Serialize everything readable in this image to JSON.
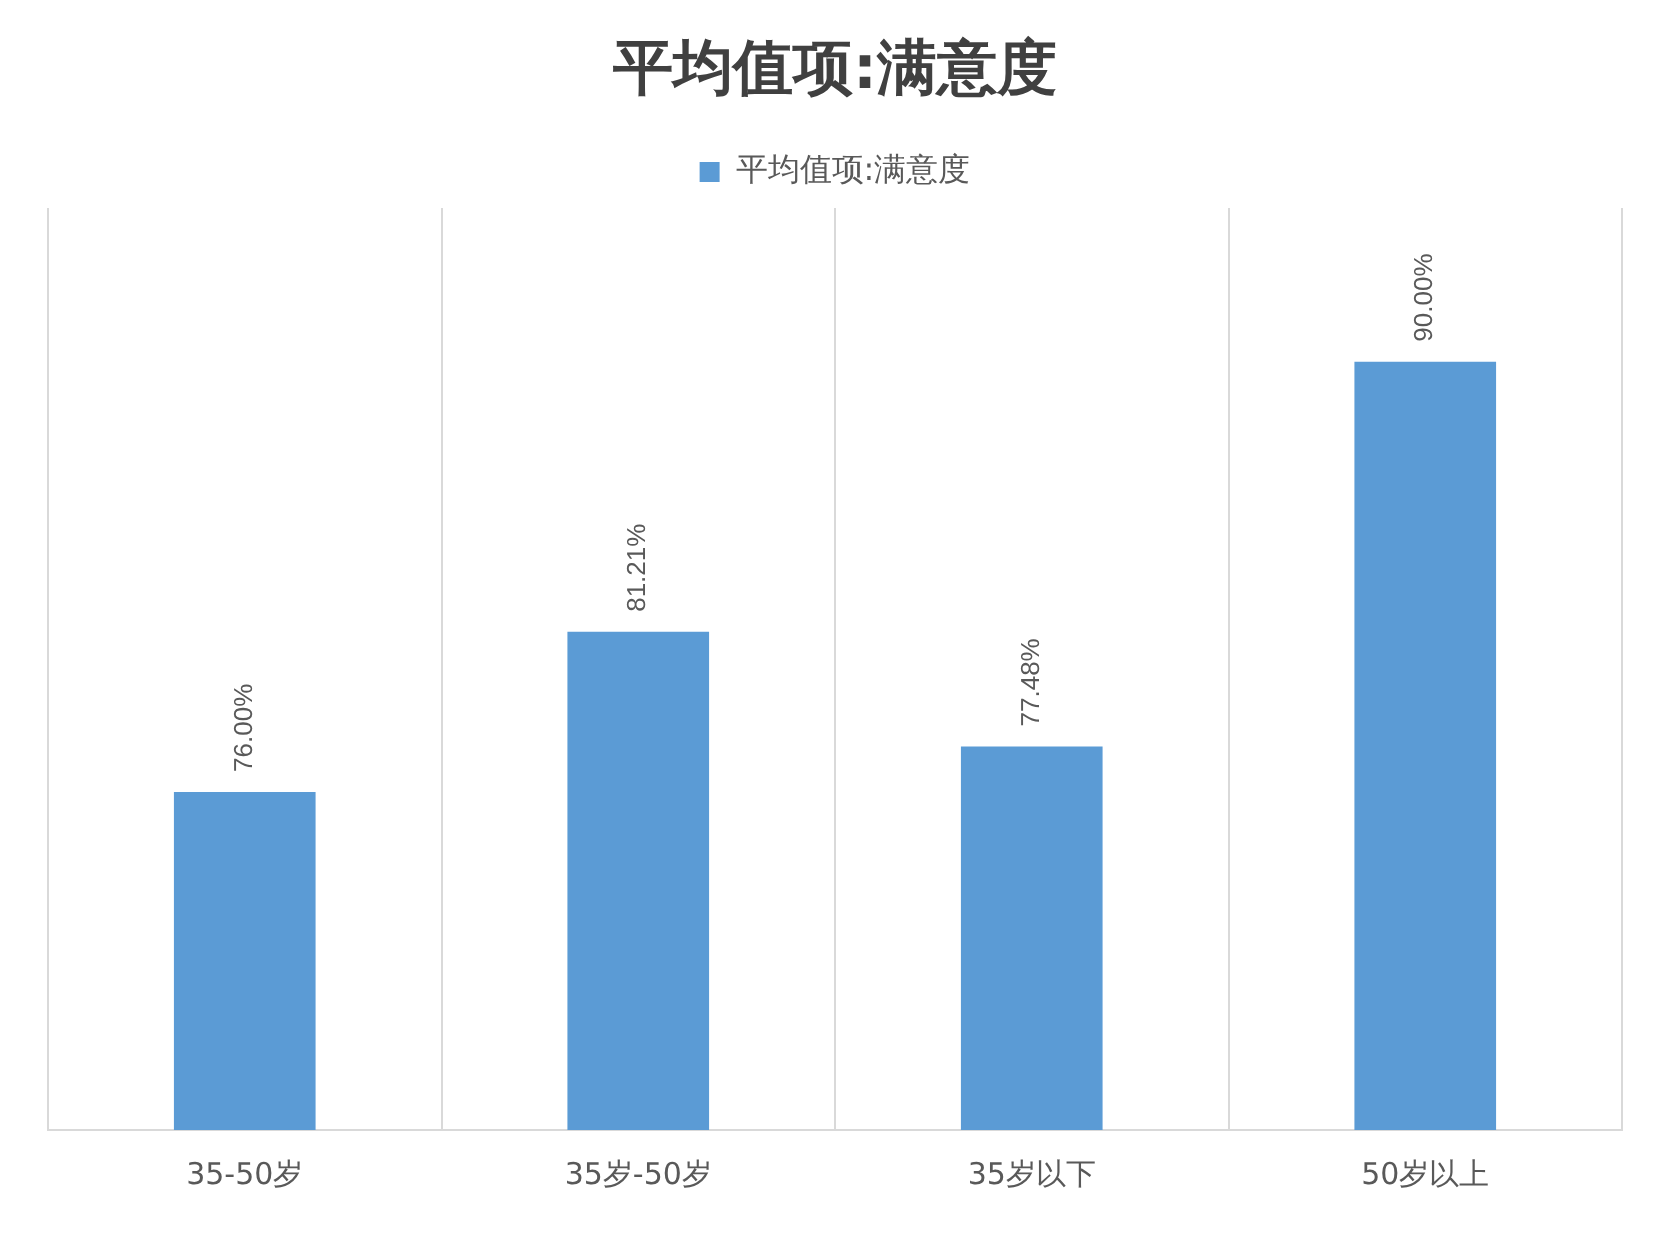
{
  "chart_data": {
    "type": "bar",
    "title": "平均值项:满意度",
    "categories": [
      "35-50岁",
      "35岁-50岁",
      "35岁以下",
      "50岁以上"
    ],
    "series": [
      {
        "name": "平均值项:满意度",
        "color": "#5b9bd5",
        "values": [
          76.0,
          81.21,
          77.48,
          90.0
        ],
        "value_labels": [
          "76.00%",
          "81.21%",
          "77.48%",
          "90.00%"
        ]
      }
    ],
    "ylim": [
      65,
      95
    ],
    "tick_labels": "x",
    "grid": "x",
    "legend": "top"
  }
}
